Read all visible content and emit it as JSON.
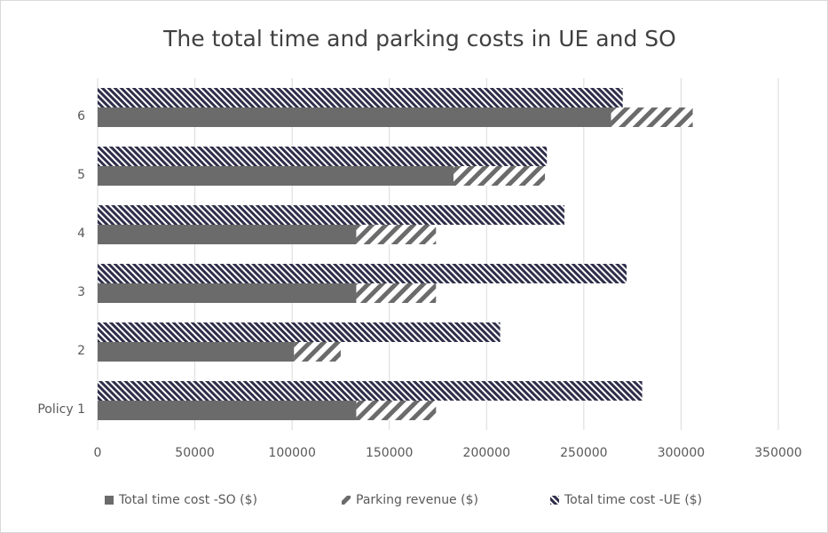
{
  "chart_data": {
    "type": "bar",
    "orientation": "horizontal",
    "title": "The total time and parking costs in UE and SO",
    "categories": [
      "Policy 1",
      "2",
      "3",
      "4",
      "5",
      "6"
    ],
    "series": [
      {
        "name": "Total time cost -SO ($)",
        "color": "#6b6b6b",
        "pattern": "solid",
        "stack": "lower",
        "values": [
          133000,
          101000,
          133000,
          133000,
          183000,
          264000
        ]
      },
      {
        "name": "Parking revenue ($)",
        "color": "#6b6b6b",
        "pattern": "slash",
        "stack": "lower",
        "values": [
          41000,
          24000,
          41000,
          41000,
          47000,
          42000
        ]
      },
      {
        "name": "Total time cost -UE ($)",
        "color": "#2e2e4a",
        "pattern": "backslash",
        "stack": "upper",
        "values": [
          280000,
          207000,
          272000,
          240000,
          231000,
          270000
        ]
      }
    ],
    "xlim": [
      0,
      350000
    ],
    "xticks": [
      0,
      50000,
      100000,
      150000,
      200000,
      250000,
      300000,
      350000
    ],
    "grid": true,
    "legend": "bottom"
  }
}
